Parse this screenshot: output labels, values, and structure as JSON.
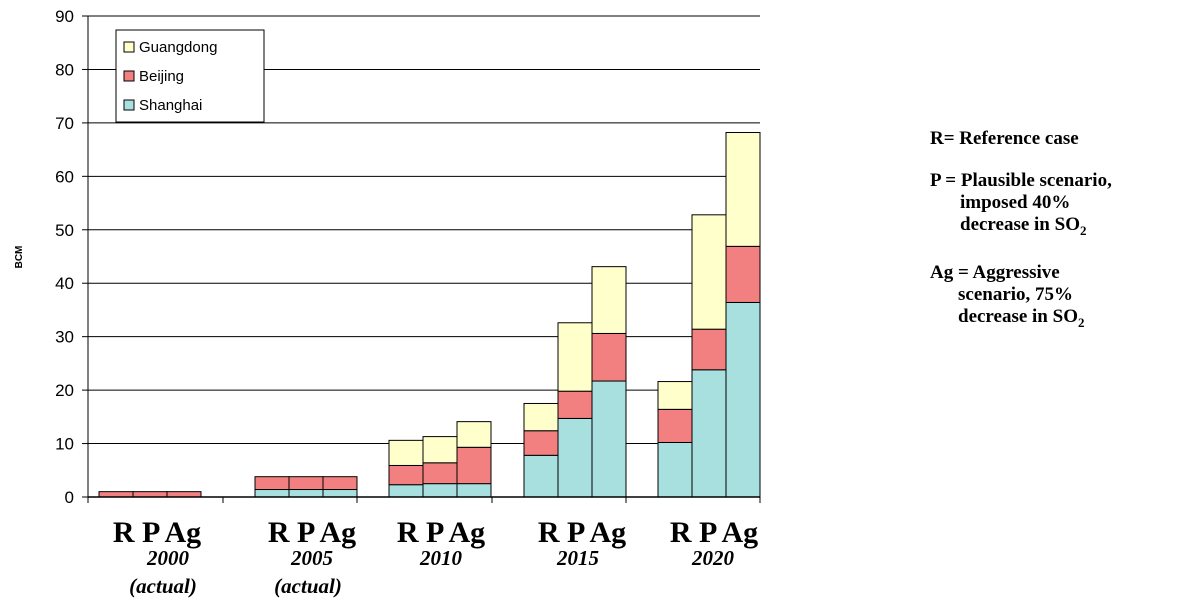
{
  "chart_data": {
    "type": "bar",
    "stacked": true,
    "ylabel": "BCM",
    "ylim": [
      0,
      90
    ],
    "yticks": [
      0,
      10,
      20,
      30,
      40,
      50,
      60,
      70,
      80,
      90
    ],
    "grid": true,
    "legend_position": "top-left",
    "groups": [
      {
        "bars": [
          "R",
          "P",
          "Ag"
        ],
        "year": "2000",
        "note": "(actual)"
      },
      {
        "bars": [
          "R",
          "P",
          "Ag"
        ],
        "year": "2005",
        "note": "(actual)"
      },
      {
        "bars": [
          "R",
          "P",
          "Ag"
        ],
        "year": "2010",
        "note": ""
      },
      {
        "bars": [
          "R",
          "P",
          "Ag"
        ],
        "year": "2015",
        "note": ""
      },
      {
        "bars": [
          "R",
          "P",
          "Ag"
        ],
        "year": "2020",
        "note": ""
      }
    ],
    "series": [
      {
        "name": "Shanghai",
        "color": "#a8e0e0",
        "values": [
          0,
          0,
          0,
          1.4,
          1.4,
          1.4,
          2.3,
          2.5,
          2.5,
          7.8,
          14.7,
          21.7,
          10.2,
          23.8,
          36.4
        ]
      },
      {
        "name": "Beijing",
        "color": "#f28080",
        "values": [
          1.0,
          1.0,
          1.0,
          2.4,
          2.4,
          2.4,
          3.6,
          3.9,
          6.8,
          4.6,
          5.1,
          8.9,
          6.2,
          7.6,
          10.5
        ]
      },
      {
        "name": "Guangdong",
        "color": "#ffffcc",
        "values": [
          0,
          0,
          0,
          0,
          0,
          0,
          4.7,
          4.9,
          4.8,
          5.1,
          12.8,
          12.5,
          5.2,
          21.4,
          21.3
        ]
      }
    ]
  },
  "notes": {
    "r_text": "R= Reference case",
    "p_line1": "P = Plausible scenario,",
    "p_line2": "imposed 40%",
    "p_line3": "decrease in SO",
    "ag_line1": "Ag = Aggressive",
    "ag_line2": "scenario, 75%",
    "ag_line3": "decrease in SO",
    "subscript": "2"
  }
}
